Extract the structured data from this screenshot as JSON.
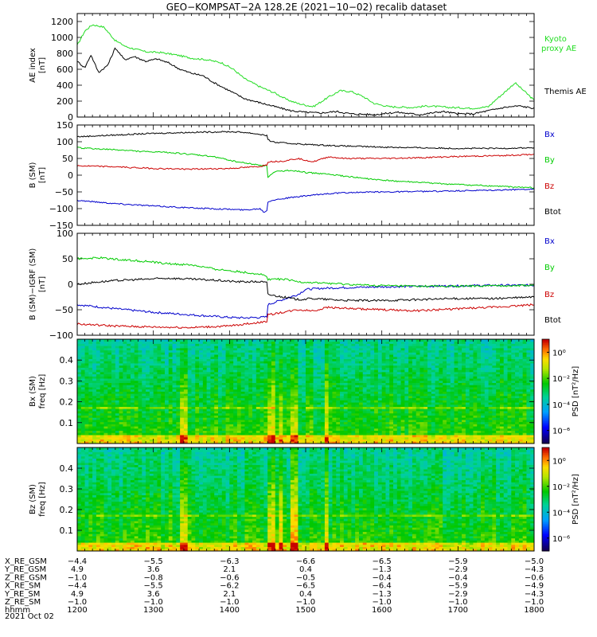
{
  "title": "GEO−KOMPSAT−2A 128.2E (2021−10−02) recalib dataset",
  "colors": {
    "bx": "#0000cc",
    "by": "#00cc00",
    "bz": "#cc0000",
    "btot": "#000000",
    "ae_kyoto": "#22dd22",
    "ae_themis": "#000000"
  },
  "chart_data": [
    {
      "id": "ae",
      "type": "line",
      "ylabel": "AE index",
      "yunit": "[nT]",
      "ylim": [
        0,
        1300
      ],
      "yticks": [
        0,
        200,
        400,
        600,
        800,
        1000,
        1200
      ],
      "series": [
        {
          "name": "Kyoto proxy AE",
          "label": [
            "Kyoto",
            "proxy AE"
          ],
          "color_key": "ae_kyoto",
          "x": [
            1200,
            1210,
            1220,
            1235,
            1250,
            1265,
            1290,
            1310,
            1330,
            1350,
            1370,
            1390,
            1405,
            1420,
            1440,
            1460,
            1475,
            1490,
            1510,
            1530,
            1545,
            1560,
            1575,
            1590,
            1610,
            1640,
            1660,
            1690,
            1720,
            1740,
            1750,
            1760,
            1775,
            1790,
            1800
          ],
          "y": [
            900,
            1080,
            1160,
            1130,
            960,
            880,
            820,
            810,
            780,
            740,
            720,
            680,
            600,
            480,
            380,
            300,
            220,
            170,
            130,
            250,
            330,
            320,
            260,
            170,
            130,
            120,
            140,
            120,
            110,
            130,
            220,
            300,
            430,
            300,
            210
          ]
        },
        {
          "name": "Themis AE",
          "label": [
            "Themis AE"
          ],
          "color_key": "ae_themis",
          "x": [
            1200,
            1210,
            1218,
            1228,
            1240,
            1250,
            1262,
            1275,
            1290,
            1305,
            1320,
            1335,
            1350,
            1365,
            1380,
            1400,
            1420,
            1440,
            1460,
            1480,
            1500,
            1520,
            1540,
            1560,
            1590,
            1620,
            1650,
            1680,
            1700,
            1720,
            1740,
            1760,
            1780,
            1800
          ],
          "y": [
            700,
            620,
            780,
            560,
            650,
            870,
            720,
            760,
            700,
            730,
            680,
            600,
            550,
            520,
            430,
            330,
            230,
            180,
            130,
            80,
            60,
            50,
            70,
            40,
            30,
            60,
            30,
            70,
            40,
            40,
            80,
            120,
            140,
            110
          ]
        }
      ]
    },
    {
      "id": "b",
      "type": "line",
      "ylabel": "B (SM)",
      "yunit": "[nT]",
      "ylim": [
        -150,
        150
      ],
      "yticks": [
        -150,
        -100,
        -50,
        0,
        50,
        100,
        150
      ],
      "series": [
        {
          "name": "Bx",
          "color_key": "bx",
          "x": [
            1200,
            1250,
            1300,
            1350,
            1400,
            1420,
            1440,
            1445,
            1450,
            1450.5,
            1455,
            1470,
            1500,
            1530,
            1560,
            1600,
            1650,
            1700,
            1750,
            1800
          ],
          "y": [
            -75,
            -85,
            -92,
            -98,
            -102,
            -104,
            -100,
            -110,
            -105,
            -80,
            -75,
            -70,
            -62,
            -55,
            -52,
            -50,
            -49,
            -47,
            -45,
            -41
          ]
        },
        {
          "name": "By",
          "color_key": "by",
          "x": [
            1200,
            1230,
            1260,
            1290,
            1320,
            1350,
            1380,
            1410,
            1440,
            1450,
            1450.5,
            1460,
            1480,
            1500,
            1520,
            1540,
            1570,
            1600,
            1650,
            1700,
            1750,
            1800
          ],
          "y": [
            82,
            78,
            75,
            70,
            68,
            62,
            55,
            40,
            30,
            28,
            -5,
            10,
            15,
            8,
            5,
            0,
            -8,
            -15,
            -22,
            -28,
            -33,
            -38
          ]
        },
        {
          "name": "Bz",
          "color_key": "bz",
          "x": [
            1200,
            1250,
            1300,
            1350,
            1400,
            1440,
            1450,
            1450.5,
            1470,
            1490,
            1510,
            1530,
            1550,
            1600,
            1650,
            1700,
            1750,
            1800
          ],
          "y": [
            28,
            25,
            20,
            18,
            20,
            26,
            32,
            40,
            42,
            50,
            40,
            55,
            50,
            50,
            52,
            56,
            58,
            62
          ]
        },
        {
          "name": "Btot",
          "color_key": "btot",
          "x": [
            1200,
            1250,
            1300,
            1350,
            1400,
            1420,
            1440,
            1450,
            1450.5,
            1460,
            1480,
            1500,
            1520,
            1540,
            1570,
            1600,
            1650,
            1700,
            1750,
            1800
          ],
          "y": [
            115,
            120,
            125,
            128,
            130,
            128,
            122,
            118,
            105,
            98,
            95,
            92,
            90,
            88,
            86,
            84,
            82,
            80,
            80,
            82
          ]
        }
      ]
    },
    {
      "id": "bd",
      "type": "line",
      "ylabel": "B (SM)−IGRF (SM)",
      "yunit": "[nT]",
      "ylim": [
        -100,
        100
      ],
      "yticks": [
        -100,
        -50,
        0,
        50,
        100
      ],
      "series": [
        {
          "name": "Bx",
          "color_key": "bx",
          "x": [
            1200,
            1250,
            1300,
            1350,
            1400,
            1420,
            1440,
            1450,
            1450.5,
            1470,
            1490,
            1500,
            1520,
            1540,
            1570,
            1600,
            1650,
            1700,
            1750,
            1800
          ],
          "y": [
            -40,
            -48,
            -55,
            -60,
            -65,
            -66,
            -65,
            -64,
            -40,
            -30,
            -20,
            -10,
            -8,
            -7,
            -6,
            -5,
            -4,
            -3,
            -2,
            -2
          ]
        },
        {
          "name": "By",
          "color_key": "by",
          "x": [
            1200,
            1230,
            1260,
            1290,
            1320,
            1350,
            1380,
            1410,
            1440,
            1450,
            1450.5,
            1470,
            1490,
            1510,
            1530,
            1550,
            1580,
            1610,
            1650,
            1700,
            1750,
            1800
          ],
          "y": [
            50,
            52,
            48,
            45,
            40,
            38,
            30,
            25,
            20,
            15,
            10,
            10,
            5,
            3,
            2,
            0,
            -2,
            -3,
            -4,
            -4,
            -3,
            -2
          ]
        },
        {
          "name": "Bz",
          "color_key": "bz",
          "x": [
            1200,
            1250,
            1300,
            1350,
            1400,
            1420,
            1440,
            1450,
            1450.5,
            1470,
            1490,
            1510,
            1530,
            1560,
            1600,
            1650,
            1700,
            1750,
            1800
          ],
          "y": [
            -78,
            -82,
            -84,
            -85,
            -82,
            -78,
            -75,
            -72,
            -60,
            -55,
            -50,
            -52,
            -45,
            -48,
            -50,
            -52,
            -48,
            -45,
            -40
          ]
        },
        {
          "name": "Btot",
          "color_key": "btot",
          "x": [
            1200,
            1230,
            1260,
            1290,
            1320,
            1350,
            1380,
            1410,
            1440,
            1450,
            1450.5,
            1470,
            1490,
            1510,
            1530,
            1560,
            1600,
            1650,
            1700,
            1750,
            1800
          ],
          "y": [
            0,
            5,
            8,
            10,
            12,
            10,
            8,
            5,
            5,
            3,
            -20,
            -25,
            -30,
            -28,
            -30,
            -32,
            -32,
            -30,
            -28,
            -28,
            -25
          ]
        }
      ]
    },
    {
      "id": "spec_bx",
      "type": "heatmap",
      "ylabel": "Bx (SM)",
      "yunit": "freq [Hz]",
      "ylim": [
        0,
        0.5
      ],
      "yticks": [
        0.1,
        0.2,
        0.3,
        0.4
      ],
      "colorbar_label": "PSD [nT²/Hz]",
      "colorbar_ticks": [
        "10⁰",
        "10⁻²",
        "10⁻⁴",
        "10⁻⁶"
      ],
      "colorbar_exp": [
        0,
        -2,
        -4,
        -6
      ],
      "colorbar_range": [
        -7,
        1
      ],
      "strong_bands": [
        [
          1337,
          1347
        ],
        [
          1450,
          1460
        ],
        [
          1466,
          1472
        ],
        [
          1482,
          1490
        ],
        [
          1525,
          1532
        ]
      ]
    },
    {
      "id": "spec_bz",
      "type": "heatmap",
      "ylabel": "Bz (SM)",
      "yunit": "freq [Hz]",
      "ylim": [
        0,
        0.5
      ],
      "yticks": [
        0.1,
        0.2,
        0.3,
        0.4
      ],
      "colorbar_label": "PSD [nT²/Hz]",
      "colorbar_ticks": [
        "10⁰",
        "10⁻²",
        "10⁻⁴",
        "10⁻⁶"
      ],
      "colorbar_exp": [
        0,
        -2,
        -4,
        -6
      ],
      "colorbar_range": [
        -7,
        1
      ],
      "strong_bands": [
        [
          1337,
          1347
        ],
        [
          1450,
          1460
        ],
        [
          1466,
          1472
        ],
        [
          1482,
          1490
        ],
        [
          1525,
          1532
        ]
      ]
    }
  ],
  "ephemeris": {
    "x_ticks": [
      1200,
      1300,
      1400,
      1500,
      1600,
      1700,
      1800
    ],
    "rows": [
      {
        "label": "X_RE_GSM",
        "values": [
          "−4.4",
          "−5.5",
          "−6.3",
          "−6.6",
          "−6.5",
          "−5.9",
          "−5.0"
        ]
      },
      {
        "label": "Y_RE_GSM",
        "values": [
          "4.9",
          "3.6",
          "2.1",
          "0.4",
          "−1.3",
          "−2.9",
          "−4.3"
        ]
      },
      {
        "label": "Z_RE_GSM",
        "values": [
          "−1.0",
          "−0.8",
          "−0.6",
          "−0.5",
          "−0.4",
          "−0.4",
          "−0.6"
        ]
      },
      {
        "label": "X_RE_SM",
        "values": [
          "−4.4",
          "−5.5",
          "−6.2",
          "−6.5",
          "−6.4",
          "−5.9",
          "−4.9"
        ]
      },
      {
        "label": "Y_RE_SM",
        "values": [
          "4.9",
          "3.6",
          "2.1",
          "0.4",
          "−1.3",
          "−2.9",
          "−4.3"
        ]
      },
      {
        "label": "Z_RE_SM",
        "values": [
          "−1.0",
          "−1.0",
          "−1.0",
          "−1.0",
          "−1.0",
          "−1.0",
          "−1.0"
        ]
      },
      {
        "label": "hhmm",
        "values": [
          "1200",
          "1300",
          "1400",
          "1500",
          "1600",
          "1700",
          "1800"
        ]
      }
    ],
    "date": "2021 Oct 02"
  }
}
